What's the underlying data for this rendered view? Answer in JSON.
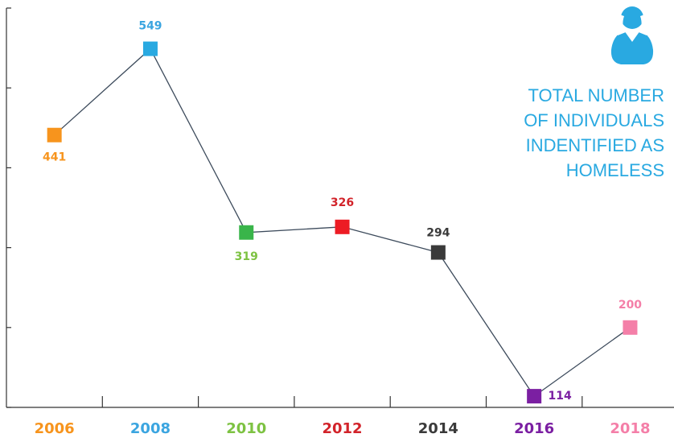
{
  "chart_data": {
    "type": "line",
    "title": [
      "TOTAL NUMBER",
      "OF INDIVIDUALS",
      "INDENTIFIED AS",
      "HOMELESS"
    ],
    "categories": [
      "2006",
      "2008",
      "2010",
      "2012",
      "2014",
      "2016",
      "2018"
    ],
    "values": [
      441,
      549,
      319,
      326,
      294,
      114,
      200
    ],
    "colors": [
      "#f7941d",
      "#29a9e1",
      "#39b54a",
      "#ed1c24",
      "#3a3a3a",
      "#7b1fa2",
      "#f47fa8"
    ],
    "label_colors": [
      "#f7941d",
      "#3ba5e0",
      "#7dc242",
      "#d2232a",
      "#3a3a3a",
      "#7b1fa2",
      "#f47fa8"
    ],
    "line_color": "#3d4b5c",
    "ylim": [
      100,
      600
    ],
    "yticks": [
      100,
      200,
      300,
      400,
      500,
      600
    ]
  }
}
